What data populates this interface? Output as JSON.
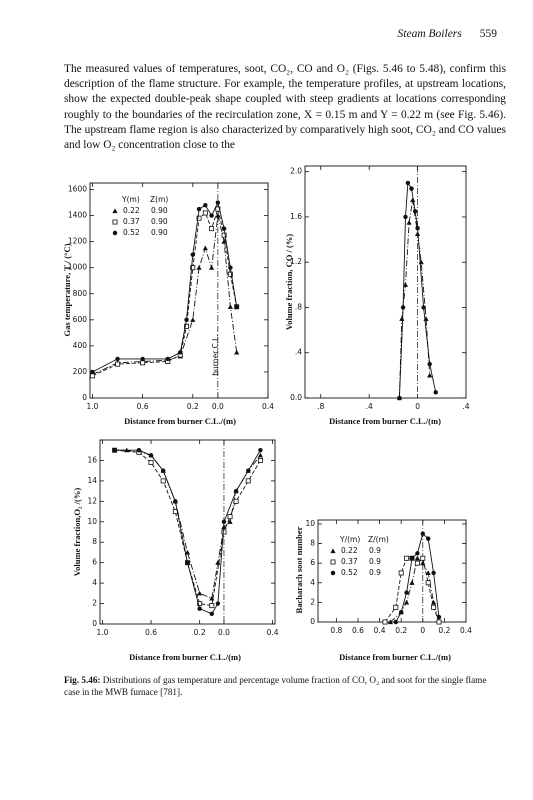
{
  "header": {
    "title": "Steam Boilers",
    "page_number": 559
  },
  "body": {
    "paragraph": "The measured values of temperatures, soot, CO₂, CO and O₂ (Figs. 5.46 to 5.48), confirm this description of the flame structure. For example, the temperature profiles, at upstream locations, show the expected double-peak shape coupled with steep gradients at locations corresponding roughly to the boundaries of the recirculation zone, X = 0.15 m and Y = 0.22 m (see Fig. 5.46). The upstream flame region is also characterized by comparatively high soot, CO₂ and CO values and low O₂ concentration close to the"
  },
  "figure": {
    "charts": [
      {
        "type": "line",
        "x_label": "Distance from burner C.L./(m)",
        "y_label": "Gas temperature, T / (°C)",
        "xlim": [
          1.02,
          -0.4
        ],
        "ylim": [
          0,
          1650
        ],
        "xticks": [
          {
            "value": 1.0,
            "label": "1.0"
          },
          0.6,
          0.2,
          {
            "value": 0,
            "label": "0.0"
          },
          {
            "value": -0.4,
            "label": "0.4"
          }
        ],
        "yticks": [
          0,
          200,
          400,
          600,
          800,
          1000,
          1200,
          1400,
          1600
        ],
        "centerline": 0,
        "annotation": "burner C.L.",
        "legend": {
          "columns": [
            "Y(m)",
            "Z(m)"
          ]
        },
        "series": [
          {
            "name": "0.22",
            "z": "0.90",
            "marker": "triangle",
            "line_style": "dashdot",
            "x": [
              1.0,
              0.8,
              0.6,
              0.4,
              0.3,
              0.2,
              0.15,
              0.1,
              0.05,
              0.0,
              -0.05,
              -0.1,
              -0.15
            ],
            "values": [
              180,
              270,
              280,
              290,
              320,
              600,
              1000,
              1150,
              1000,
              1400,
              1200,
              700,
              350
            ]
          },
          {
            "name": "0.37",
            "z": "0.90",
            "marker": "square",
            "line_style": "dashed",
            "x": [
              1.0,
              0.8,
              0.6,
              0.4,
              0.3,
              0.25,
              0.2,
              0.15,
              0.1,
              0.05,
              0.0,
              -0.05,
              -0.1,
              -0.15
            ],
            "values": [
              170,
              260,
              270,
              280,
              330,
              550,
              1000,
              1380,
              1420,
              1300,
              1450,
              1250,
              950,
              700
            ]
          },
          {
            "name": "0.52",
            "z": "0.90",
            "marker": "circle",
            "line_style": "solid",
            "x": [
              1.0,
              0.8,
              0.6,
              0.4,
              0.3,
              0.25,
              0.2,
              0.15,
              0.1,
              0.05,
              0.0,
              -0.05,
              -0.1,
              -0.15
            ],
            "values": [
              200,
              300,
              300,
              300,
              350,
              600,
              1100,
              1450,
              1480,
              1400,
              1500,
              1300,
              1000,
              700
            ]
          }
        ]
      },
      {
        "type": "line",
        "x_label": "Distance from burner C.L./(m)",
        "y_label": "Volume fraction, CO / (%)",
        "xlim": [
          0.93,
          -0.4
        ],
        "ylim": [
          0,
          2.05
        ],
        "xticks": [
          {
            "value": 0.8,
            "label": ".8"
          },
          {
            "value": 0.4,
            "label": ".4"
          },
          0,
          {
            "value": -0.4,
            "label": ".4"
          }
        ],
        "yticks": [
          {
            "value": 0,
            "label": "0.0"
          },
          {
            "value": 0.4,
            "label": ".4"
          },
          {
            "value": 0.8,
            "label": ".8"
          },
          1.2,
          1.6,
          {
            "value": 2.0,
            "label": "2.0"
          }
        ],
        "centerline": 0,
        "series": [
          {
            "marker": "triangle",
            "line_style": "dashdot",
            "x": [
              0.15,
              0.13,
              0.1,
              0.07,
              0.04,
              0.0,
              -0.03,
              -0.07,
              -0.1
            ],
            "values": [
              0,
              0.7,
              1.0,
              1.55,
              1.75,
              1.45,
              1.2,
              0.7,
              0.2
            ]
          },
          {
            "marker": "circle",
            "line_style": "solid",
            "x": [
              0.15,
              0.12,
              0.1,
              0.08,
              0.05,
              0.02,
              0.0,
              -0.05,
              -0.1,
              -0.15
            ],
            "values": [
              0,
              0.8,
              1.6,
              1.9,
              1.85,
              1.65,
              1.5,
              0.8,
              0.3,
              0.05
            ]
          }
        ]
      },
      {
        "type": "line",
        "x_label": "Distance from burner C.L./(m)",
        "y_label": "Volume fraction,O₂ /(%)",
        "xlim": [
          1.02,
          -0.42
        ],
        "ylim": [
          0,
          18
        ],
        "xticks": [
          {
            "value": 1.0,
            "label": "1.0"
          },
          0.6,
          0.2,
          {
            "value": 0,
            "label": "0.0"
          },
          {
            "value": -0.4,
            "label": "0.4"
          }
        ],
        "yticks": [
          0,
          2,
          4,
          6,
          8,
          10,
          12,
          14,
          16
        ],
        "centerline": 0,
        "series": [
          {
            "marker": "triangle",
            "line_style": "dashdot",
            "x": [
              0.9,
              0.8,
              0.7,
              0.6,
              0.5,
              0.4,
              0.3,
              0.2,
              0.1,
              0.05,
              0.0,
              -0.05,
              -0.1,
              -0.2,
              -0.3
            ],
            "values": [
              17,
              17,
              16.8,
              16.5,
              15,
              12,
              7,
              3,
              2.5,
              6,
              9.5,
              10,
              13,
              15,
              16.5
            ]
          },
          {
            "marker": "square",
            "line_style": "dashed",
            "x": [
              0.9,
              0.7,
              0.6,
              0.5,
              0.4,
              0.3,
              0.2,
              0.1,
              0.0,
              -0.05,
              -0.1,
              -0.2,
              -0.3
            ],
            "values": [
              17,
              16.8,
              15.8,
              14,
              11,
              6,
              2,
              1.8,
              9,
              10.5,
              12,
              14,
              16
            ]
          },
          {
            "marker": "circle",
            "line_style": "solid",
            "x": [
              0.9,
              0.7,
              0.6,
              0.5,
              0.4,
              0.3,
              0.2,
              0.1,
              0.05,
              0.0,
              -0.1,
              -0.2,
              -0.3
            ],
            "values": [
              17,
              17,
              16.5,
              15,
              12,
              6,
              1.5,
              1,
              2,
              10,
              13,
              15,
              17
            ]
          }
        ]
      },
      {
        "type": "line",
        "x_label": "Distance from burner C.L./(m)",
        "y_label": "Bacharach soot number",
        "xlim": [
          0.97,
          -0.4
        ],
        "ylim": [
          0,
          10.4
        ],
        "xticks": [
          0.8,
          0.6,
          0.4,
          0.2,
          0,
          {
            "value": -0.2,
            "label": "0.2"
          },
          {
            "value": -0.4,
            "label": "0.4"
          }
        ],
        "yticks": [
          0,
          2,
          4,
          6,
          8,
          10
        ],
        "centerline": 0,
        "legend": {
          "columns": [
            "Y/(m)",
            "Z/(m)"
          ]
        },
        "series": [
          {
            "name": "0.22",
            "z": "0.9",
            "marker": "triangle",
            "line_style": "dashdot",
            "x": [
              0.3,
              0.2,
              0.15,
              0.1,
              0.05,
              0.0,
              -0.05,
              -0.1,
              -0.15
            ],
            "values": [
              0,
              1,
              2,
              4,
              6.5,
              6,
              5,
              2,
              0
            ]
          },
          {
            "name": "0.37",
            "z": "0.9",
            "marker": "square",
            "line_style": "dashed",
            "x": [
              0.35,
              0.25,
              0.2,
              0.15,
              0.1,
              0.05,
              0.0,
              -0.05,
              -0.1,
              -0.15
            ],
            "values": [
              0,
              1.5,
              5,
              6.5,
              6.5,
              6,
              6.5,
              4,
              1.5,
              0
            ]
          },
          {
            "name": "0.52",
            "z": "0.9",
            "marker": "circle",
            "line_style": "solid",
            "x": [
              0.25,
              0.2,
              0.15,
              0.1,
              0.05,
              0.0,
              -0.05,
              -0.1,
              -0.15
            ],
            "values": [
              0,
              1,
              3,
              6.5,
              7,
              9,
              8.5,
              5,
              0.5
            ]
          }
        ]
      }
    ],
    "caption": {
      "label": "Fig. 5.46:",
      "text": "Distributions of gas temperature and percentage volume fraction of CO, O₂ and soot for the single flame case in the MWB furnace [781]."
    }
  }
}
